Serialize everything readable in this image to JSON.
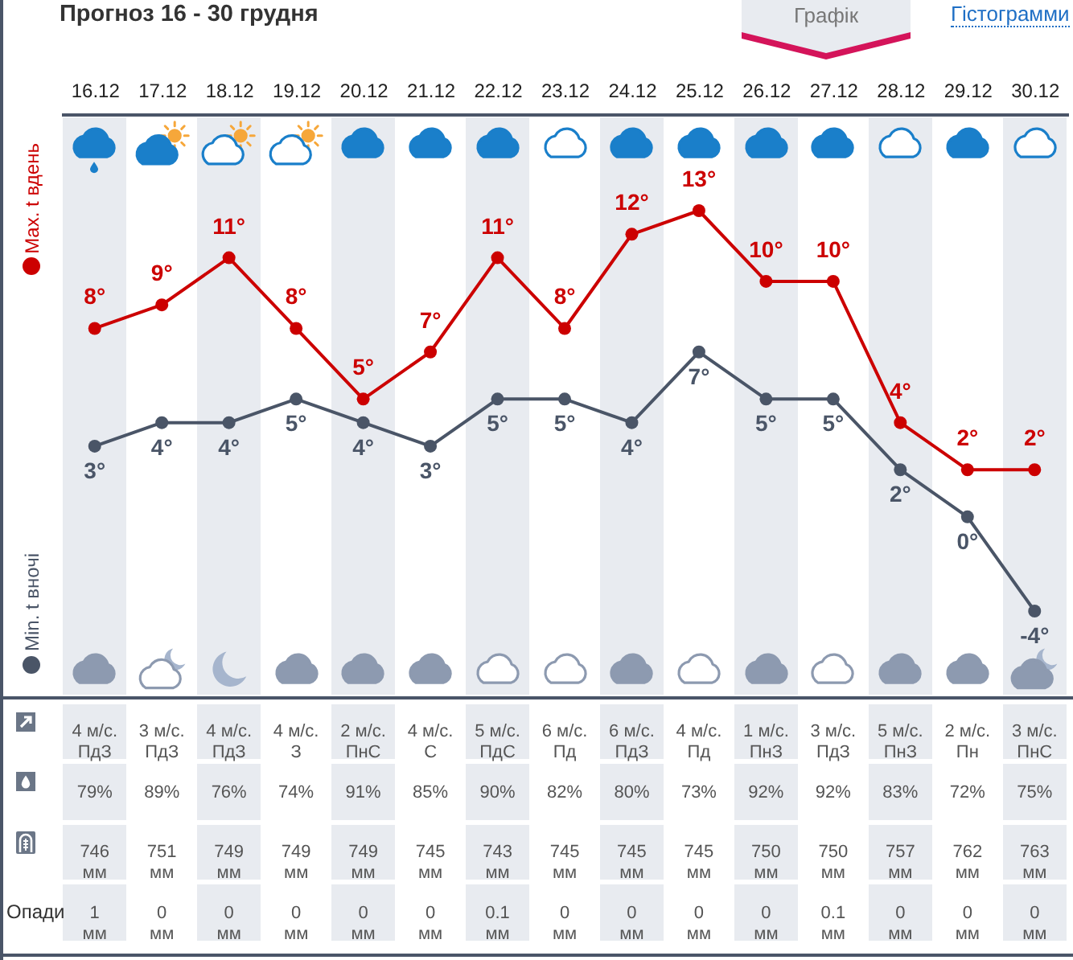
{
  "chart_data": [
    {
      "type": "line",
      "title": "Прогноз 16 - 30 грудня",
      "annotations": [
        "Графік",
        "Гістограмми"
      ],
      "categories": [
        "16.12",
        "17.12",
        "18.12",
        "19.12",
        "20.12",
        "21.12",
        "22.12",
        "23.12",
        "24.12",
        "25.12",
        "26.12",
        "27.12",
        "28.12",
        "29.12",
        "30.12"
      ],
      "series": [
        {
          "name": "Max. t вдень",
          "color": "#cc0000",
          "values": [
            8,
            9,
            11,
            8,
            5,
            7,
            11,
            8,
            12,
            13,
            10,
            10,
            4,
            2,
            2
          ],
          "value_labels": [
            "8°",
            "9°",
            "11°",
            "8°",
            "5°",
            "7°",
            "11°",
            "8°",
            "12°",
            "13°",
            "10°",
            "10°",
            "4°",
            "2°",
            "2°"
          ]
        },
        {
          "name": "Min. t вночі",
          "color": "#4a5567",
          "values": [
            3,
            4,
            4,
            5,
            4,
            3,
            5,
            5,
            4,
            7,
            5,
            5,
            2,
            0,
            -4
          ],
          "value_labels": [
            "3°",
            "4°",
            "4°",
            "5°",
            "4°",
            "3°",
            "5°",
            "5°",
            "4°",
            "7°",
            "5°",
            "5°",
            "2°",
            "0°",
            "-4°"
          ]
        }
      ],
      "legend": "left",
      "marker": "circle",
      "line_style": "solid",
      "tick_labels": "x"
    },
    {
      "type": "other",
      "annotations": [
        "4 м/с. ПдЗ",
        "3 м/с. ПдЗ",
        "4 м/с. ПдЗ",
        "4 м/с. З",
        "2 м/с. ПнС",
        "4 м/с. С",
        "5 м/с. ПдС",
        "6 м/с. Пд",
        "6 м/с. ПдЗ",
        "4 м/с. Пд",
        "1 м/с. ПнЗ",
        "3 м/с. ПдЗ",
        "5 м/с. ПнЗ",
        "2 м/с. Пн",
        "3 м/с. ПнС"
      ]
    },
    {
      "type": "other",
      "annotations": [
        "79%",
        "89%",
        "76%",
        "74%",
        "91%",
        "85%",
        "90%",
        "82%",
        "80%",
        "73%",
        "92%",
        "92%",
        "83%",
        "72%",
        "75%"
      ]
    },
    {
      "type": "other",
      "annotations": [
        "746 мм",
        "751 мм",
        "749 мм",
        "749 мм",
        "749 мм",
        "745 мм",
        "743 мм",
        "745 мм",
        "745 мм",
        "745 мм",
        "750 мм",
        "750 мм",
        "757 мм",
        "762 мм",
        "763 мм"
      ]
    },
    {
      "type": "other",
      "title": "Опади",
      "annotations": [
        "1 мм",
        "0 мм",
        "0 мм",
        "0 мм",
        "0 мм",
        "0 мм",
        "0.1 мм",
        "0 мм",
        "0 мм",
        "0 мм",
        "0 мм",
        "0.1 мм",
        "0 мм",
        "0 мм",
        "0 мм"
      ]
    }
  ]
}
